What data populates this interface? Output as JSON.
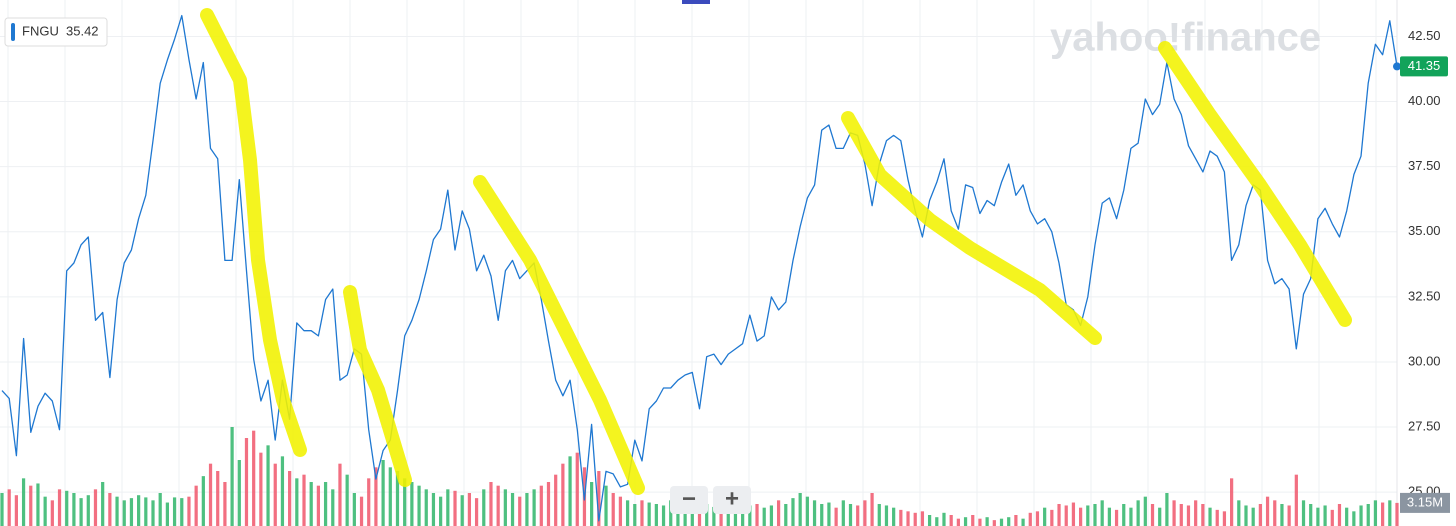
{
  "chart_data": {
    "type": "line",
    "logo": "yahoo!finance",
    "legend_value": 35.42,
    "controls": [
      "−",
      "+"
    ],
    "ylim": [
      23.7,
      43.9
    ],
    "yticks": [
      {
        "value": 25,
        "label": "25.00"
      },
      {
        "value": 27.5,
        "label": "27.50"
      },
      {
        "value": 30,
        "label": "30.00"
      },
      {
        "value": 32.5,
        "label": "32.50"
      },
      {
        "value": 35,
        "label": "35.00"
      },
      {
        "value": 37.5,
        "label": "37.50"
      },
      {
        "value": 40,
        "label": "40.00"
      },
      {
        "value": 42.5,
        "label": "42.50"
      }
    ],
    "grid": true,
    "series": [
      {
        "name": "FNGU",
        "color": "#1f78d1",
        "values": [
          28.9,
          28.6,
          26.4,
          30.9,
          27.3,
          28.3,
          28.8,
          28.5,
          27.4,
          33.5,
          33.8,
          34.5,
          34.8,
          31.6,
          31.9,
          29.4,
          32.4,
          33.8,
          34.3,
          35.5,
          36.4,
          38.5,
          40.7,
          41.6,
          42.4,
          43.3,
          41.6,
          40.1,
          41.5,
          38.2,
          37.8,
          33.9,
          33.9,
          37.0,
          33.5,
          30.1,
          28.5,
          29.3,
          27.0,
          29.3,
          27.8,
          31.5,
          31.2,
          31.2,
          31.0,
          32.4,
          32.8,
          29.3,
          29.5,
          30.5,
          30.3,
          27.4,
          25.5,
          26.6,
          27.0,
          28.9,
          31.0,
          31.6,
          32.4,
          33.5,
          34.7,
          35.1,
          36.6,
          34.3,
          35.8,
          35.1,
          33.5,
          34.1,
          33.3,
          31.6,
          33.5,
          33.9,
          33.2,
          33.5,
          33.8,
          32.4,
          30.8,
          29.3,
          28.7,
          29.3,
          27.4,
          24.7,
          27.6,
          23.9,
          25.8,
          25.7,
          25.2,
          25.3,
          27.0,
          26.2,
          28.2,
          28.5,
          29.0,
          29.0,
          29.3,
          29.5,
          29.6,
          28.2,
          30.2,
          30.3,
          29.9,
          30.3,
          30.5,
          30.7,
          31.8,
          30.8,
          31.0,
          32.5,
          32.0,
          32.3,
          33.9,
          35.2,
          36.3,
          36.8,
          38.9,
          39.1,
          38.2,
          38.2,
          38.8,
          38.7,
          37.6,
          36.0,
          37.6,
          38.5,
          38.7,
          38.5,
          37.0,
          35.8,
          34.8,
          36.2,
          36.9,
          37.8,
          35.8,
          35.1,
          36.8,
          36.7,
          35.7,
          36.2,
          36.0,
          36.9,
          37.6,
          36.4,
          36.8,
          35.8,
          35.3,
          35.5,
          35.0,
          33.8,
          32.2,
          32.0,
          31.4,
          32.5,
          34.5,
          36.1,
          36.3,
          35.5,
          36.6,
          38.2,
          38.4,
          40.1,
          39.5,
          39.9,
          41.5,
          40.1,
          39.5,
          38.3,
          37.8,
          37.3,
          38.1,
          37.9,
          37.3,
          33.9,
          34.5,
          36.0,
          36.8,
          36.6,
          33.9,
          33.0,
          33.2,
          32.8,
          30.5,
          32.6,
          33.2,
          35.5,
          35.9,
          35.3,
          34.8,
          35.8,
          37.2,
          37.9,
          40.7,
          42.2,
          41.8,
          43.1,
          41.35
        ]
      }
    ],
    "volume": {
      "up_color": "#2fb56a",
      "down_color": "#f0566b",
      "ylim": [
        0,
        15
      ],
      "values": [
        4.5,
        5.0,
        4.2,
        6.5,
        5.5,
        5.8,
        4.0,
        3.5,
        5.0,
        4.8,
        4.5,
        3.8,
        4.2,
        5.0,
        6.0,
        4.5,
        4.0,
        3.5,
        3.8,
        4.2,
        3.9,
        3.5,
        4.5,
        3.2,
        3.9,
        3.8,
        4.0,
        5.5,
        6.8,
        8.5,
        7.5,
        6.0,
        13.5,
        9.0,
        12.0,
        13.0,
        10.0,
        11.0,
        8.5,
        9.5,
        7.5,
        6.5,
        7.0,
        6.0,
        5.5,
        6.0,
        5.0,
        8.5,
        7.0,
        4.5,
        4.0,
        6.5,
        8.0,
        9.0,
        8.0,
        7.5,
        6.5,
        6.0,
        5.5,
        5.0,
        4.5,
        4.0,
        5.0,
        4.8,
        4.2,
        4.5,
        3.8,
        5.0,
        6.0,
        5.5,
        5.0,
        4.5,
        4.0,
        4.5,
        5.0,
        5.5,
        6.0,
        7.0,
        8.5,
        9.5,
        10.0,
        8.0,
        6.0,
        7.5,
        5.5,
        4.5,
        4.0,
        3.5,
        3.0,
        3.5,
        3.2,
        3.0,
        2.8,
        3.5,
        3.0,
        2.5,
        2.8,
        3.5,
        3.0,
        2.6,
        3.2,
        2.8,
        3.0,
        3.5,
        2.8,
        3.0,
        2.5,
        2.8,
        3.5,
        3.0,
        3.8,
        4.5,
        4.0,
        3.5,
        3.0,
        3.2,
        2.5,
        3.5,
        3.0,
        2.8,
        3.5,
        4.5,
        3.0,
        2.8,
        2.5,
        2.2,
        2.0,
        1.8,
        2.0,
        1.5,
        1.2,
        1.8,
        1.5,
        1.0,
        1.2,
        1.5,
        1.0,
        1.2,
        0.8,
        1.0,
        1.2,
        1.5,
        1.0,
        1.8,
        2.0,
        2.5,
        2.2,
        3.0,
        2.8,
        3.2,
        2.5,
        2.8,
        3.0,
        3.5,
        2.5,
        2.2,
        3.0,
        2.5,
        3.5,
        4.0,
        3.0,
        2.5,
        4.5,
        3.5,
        3.0,
        2.8,
        3.5,
        3.0,
        2.5,
        2.2,
        2.0,
        6.5,
        3.5,
        2.8,
        2.5,
        3.0,
        4.0,
        3.5,
        3.0,
        2.8,
        7.0,
        3.5,
        3.0,
        2.5,
        2.8,
        2.2,
        3.0,
        2.5,
        2.0,
        2.8,
        3.0,
        3.5,
        3.2,
        3.5,
        3.15
      ],
      "value_labels": {
        "194": "3.15M"
      }
    }
  }
}
